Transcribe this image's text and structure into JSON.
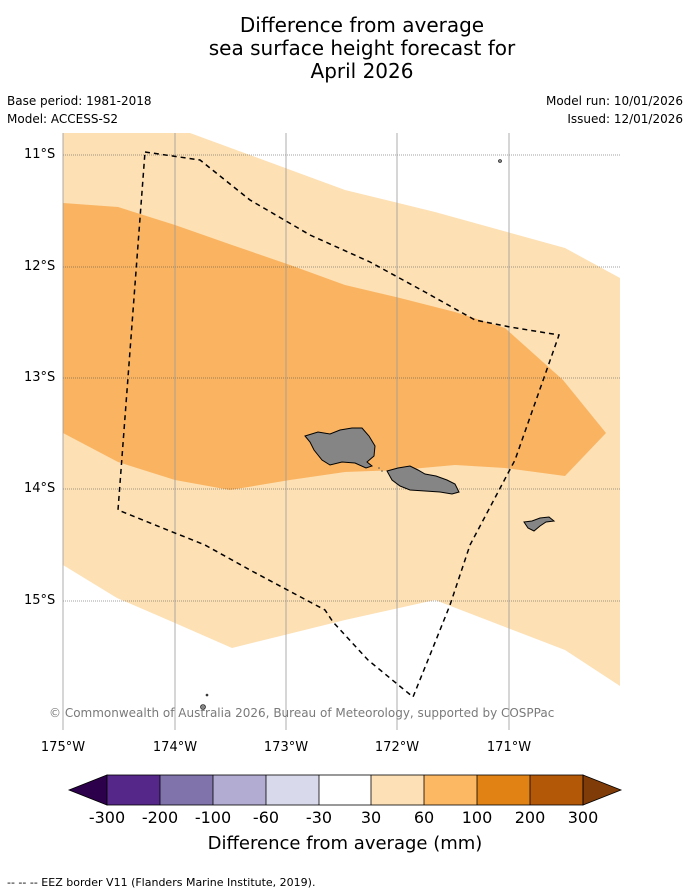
{
  "title": {
    "line1": "Difference from average",
    "line2": "sea surface height forecast for",
    "line3": "April 2026"
  },
  "meta": {
    "base_period": "Base period: 1981-2018",
    "model": "Model: ACCESS-S2",
    "model_run": "Model run: 10/01/2026",
    "issued": "Issued: 12/01/2026"
  },
  "axes": {
    "lat_labels": [
      "11°S",
      "12°S",
      "13°S",
      "14°S",
      "15°S"
    ],
    "lon_labels": [
      "175°W",
      "174°W",
      "173°W",
      "172°W",
      "171°W"
    ]
  },
  "map": {
    "copyright": "© Commonwealth of Australia 2026, Bureau of Meteorology, supported by COSPPac",
    "band_colors": {
      "30_60": "#fde0b4",
      "60_100": "#fab461",
      "land": "#858585"
    }
  },
  "colorbar": {
    "title": "Difference from average (mm)",
    "tick_labels": [
      "-300",
      "-200",
      "-100",
      "-60",
      "-30",
      "30",
      "60",
      "100",
      "200",
      "300"
    ],
    "colors": [
      "#2d004b",
      "#542788",
      "#8073ac",
      "#b2abd2",
      "#d8daeb",
      "#ffffff",
      "#fee0b6",
      "#fdb863",
      "#e08214",
      "#b35806",
      "#7f3b08"
    ]
  },
  "footer": {
    "legend": "--  --  -- EEZ border V11 (Flanders Marine Institute, 2019)."
  }
}
